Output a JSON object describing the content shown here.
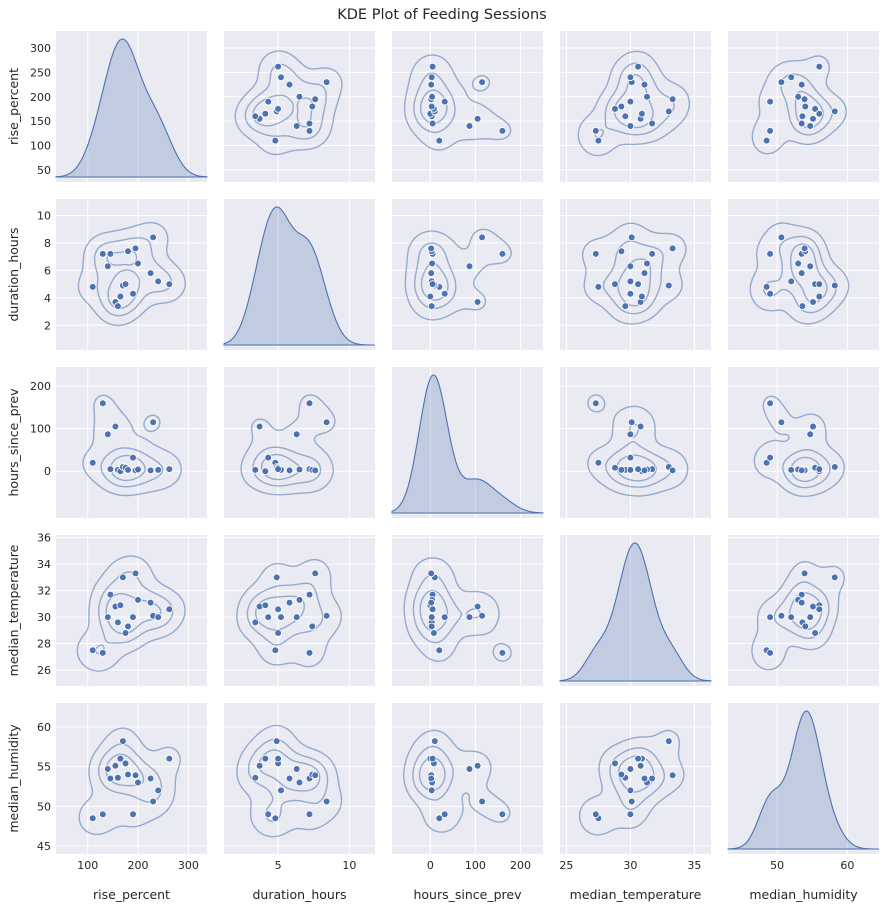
{
  "chart_data": {
    "type": "scatter",
    "kind": "pairplot-kde",
    "title": "KDE Plot of Feeding Sessions",
    "colors": {
      "points": "#4c72b0",
      "panel_bg": "#eaeaf2",
      "grid": "#ffffff"
    },
    "grid": true,
    "variables": [
      {
        "name": "rise_percent",
        "label": "rise_percent",
        "xlim": [
          37,
          337
        ],
        "ylim": [
          25,
          335
        ],
        "xticks": [
          100,
          200,
          300
        ],
        "yticks": [
          50,
          100,
          150,
          200,
          250,
          300
        ]
      },
      {
        "name": "duration_hours",
        "label": "duration_hours",
        "xlim": [
          1.2,
          11.8
        ],
        "ylim": [
          0.2,
          11.2
        ],
        "xticks": [
          5,
          10
        ],
        "yticks": [
          2,
          4,
          6,
          8,
          10
        ]
      },
      {
        "name": "hours_since_prev",
        "label": "hours_since_prev",
        "xlim": [
          -85,
          250
        ],
        "ylim": [
          -110,
          245
        ],
        "xticks": [
          0,
          100,
          200
        ],
        "yticks": [
          0,
          100,
          200
        ]
      },
      {
        "name": "median_temperature",
        "label": "median_temperature",
        "xlim": [
          24.5,
          36.3
        ],
        "ylim": [
          24.8,
          36.2
        ],
        "xticks": [
          25,
          30,
          35
        ],
        "yticks": [
          26,
          28,
          30,
          32,
          34,
          36
        ]
      },
      {
        "name": "median_humidity",
        "label": "median_humidity",
        "xlim": [
          43,
          64.5
        ],
        "ylim": [
          44,
          63
        ],
        "xticks": [
          50,
          60
        ],
        "yticks": [
          45,
          50,
          55,
          60
        ]
      }
    ],
    "records": [
      {
        "rise_percent": 110,
        "duration_hours": 4.8,
        "hours_since_prev": 20,
        "median_temperature": 27.5,
        "median_humidity": 48.5
      },
      {
        "rise_percent": 130,
        "duration_hours": 7.2,
        "hours_since_prev": 160,
        "median_temperature": 27.3,
        "median_humidity": 49.0
      },
      {
        "rise_percent": 140,
        "duration_hours": 6.3,
        "hours_since_prev": 87,
        "median_temperature": 30.0,
        "median_humidity": 54.7
      },
      {
        "rise_percent": 145,
        "duration_hours": 7.2,
        "hours_since_prev": 5,
        "median_temperature": 31.7,
        "median_humidity": 53.5
      },
      {
        "rise_percent": 155,
        "duration_hours": 3.7,
        "hours_since_prev": 105,
        "median_temperature": 30.8,
        "median_humidity": 55.1
      },
      {
        "rise_percent": 160,
        "duration_hours": 3.4,
        "hours_since_prev": 3,
        "median_temperature": 29.6,
        "median_humidity": 53.6
      },
      {
        "rise_percent": 165,
        "duration_hours": 4.1,
        "hours_since_prev": 0,
        "median_temperature": 30.9,
        "median_humidity": 56.0
      },
      {
        "rise_percent": 170,
        "duration_hours": 4.9,
        "hours_since_prev": 10,
        "median_temperature": 33.0,
        "median_humidity": 58.2
      },
      {
        "rise_percent": 175,
        "duration_hours": 5.0,
        "hours_since_prev": 8,
        "median_temperature": 28.8,
        "median_humidity": 55.4
      },
      {
        "rise_percent": 180,
        "duration_hours": 7.4,
        "hours_since_prev": 3,
        "median_temperature": 29.3,
        "median_humidity": 54.0
      },
      {
        "rise_percent": 190,
        "duration_hours": 4.3,
        "hours_since_prev": 32,
        "median_temperature": 30.0,
        "median_humidity": 49.0
      },
      {
        "rise_percent": 195,
        "duration_hours": 7.6,
        "hours_since_prev": 2,
        "median_temperature": 33.3,
        "median_humidity": 53.9
      },
      {
        "rise_percent": 200,
        "duration_hours": 6.5,
        "hours_since_prev": 4,
        "median_temperature": 31.3,
        "median_humidity": 53.0
      },
      {
        "rise_percent": 230,
        "duration_hours": 8.4,
        "hours_since_prev": 115,
        "median_temperature": 30.1,
        "median_humidity": 50.6
      },
      {
        "rise_percent": 225,
        "duration_hours": 5.8,
        "hours_since_prev": 2,
        "median_temperature": 31.1,
        "median_humidity": 53.5
      },
      {
        "rise_percent": 240,
        "duration_hours": 5.2,
        "hours_since_prev": 3,
        "median_temperature": 30.0,
        "median_humidity": 52.0
      },
      {
        "rise_percent": 262,
        "duration_hours": 5.0,
        "hours_since_prev": 5,
        "median_temperature": 30.6,
        "median_humidity": 56.0
      }
    ]
  }
}
